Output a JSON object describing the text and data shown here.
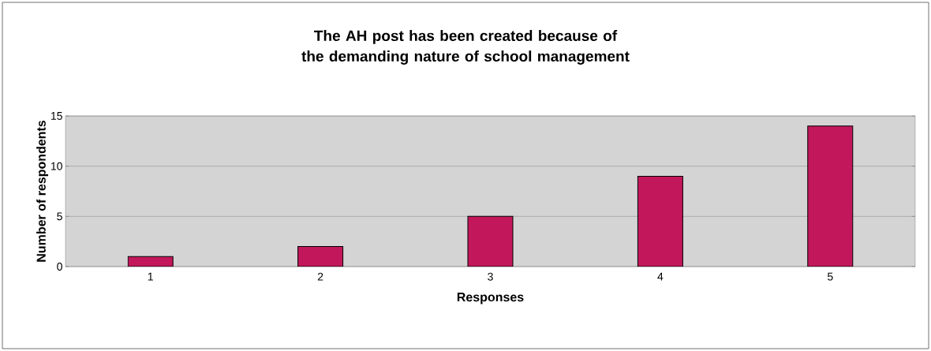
{
  "chart_data": {
    "type": "bar",
    "title": "The AH post has been created because of the demanding nature of school management",
    "xlabel": "Responses",
    "ylabel": "Number of respondents",
    "categories": [
      "1",
      "2",
      "3",
      "4",
      "5"
    ],
    "values": [
      1,
      2,
      5,
      9,
      14
    ],
    "color": "#c2185b",
    "ylim": [
      0,
      15
    ],
    "yticks": [
      0,
      5,
      10,
      15
    ],
    "grid": "y"
  }
}
